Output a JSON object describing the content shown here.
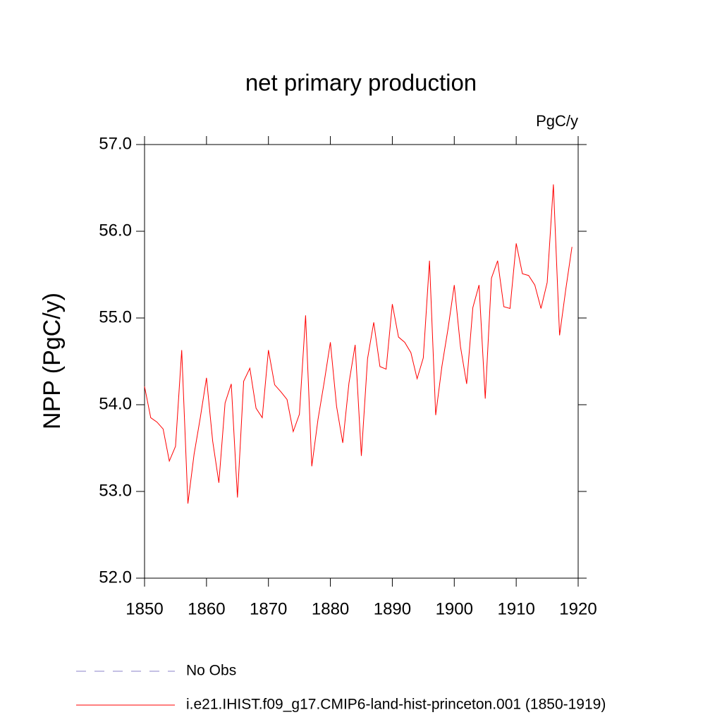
{
  "chart_data": {
    "type": "line",
    "title": "net primary production",
    "units": "PgC/y",
    "y_label": "NPP  (PgC/y)",
    "x": [
      1850,
      1851,
      1852,
      1853,
      1854,
      1855,
      1856,
      1857,
      1858,
      1859,
      1860,
      1861,
      1862,
      1863,
      1864,
      1865,
      1866,
      1867,
      1868,
      1869,
      1870,
      1871,
      1872,
      1873,
      1874,
      1875,
      1876,
      1877,
      1878,
      1879,
      1880,
      1881,
      1882,
      1883,
      1884,
      1885,
      1886,
      1887,
      1888,
      1889,
      1890,
      1891,
      1892,
      1893,
      1894,
      1895,
      1896,
      1897,
      1898,
      1899,
      1900,
      1901,
      1902,
      1903,
      1904,
      1905,
      1906,
      1907,
      1908,
      1909,
      1910,
      1911,
      1912,
      1913,
      1914,
      1915,
      1916,
      1917,
      1918,
      1919
    ],
    "series": [
      {
        "name": "i.e21.IHIST.f09_g17.CMIP6-land-hist-princeton.001 (1850-1919)",
        "color": "#ff0000",
        "values": [
          54.21,
          53.85,
          53.8,
          53.72,
          53.35,
          53.52,
          54.63,
          52.86,
          53.43,
          53.85,
          54.31,
          53.58,
          53.1,
          54.02,
          54.24,
          52.93,
          54.27,
          54.42,
          53.96,
          53.85,
          54.63,
          54.23,
          54.15,
          54.06,
          53.69,
          53.89,
          55.03,
          53.29,
          53.83,
          54.26,
          54.72,
          53.98,
          53.56,
          54.25,
          54.69,
          53.41,
          54.53,
          54.95,
          54.44,
          54.41,
          55.16,
          54.78,
          54.72,
          54.6,
          54.3,
          54.54,
          55.66,
          53.88,
          54.44,
          54.88,
          55.38,
          54.67,
          54.24,
          55.12,
          55.38,
          54.07,
          55.46,
          55.66,
          55.13,
          55.11,
          55.86,
          55.51,
          55.49,
          55.38,
          55.11,
          55.41,
          56.54,
          54.8,
          55.33,
          55.82
        ]
      }
    ],
    "reference_lines": [
      {
        "name": "No Obs",
        "color": "#8a80c8",
        "dash": true
      }
    ],
    "xlim": [
      1850,
      1920
    ],
    "xticks": [
      1850,
      1860,
      1870,
      1880,
      1890,
      1900,
      1910,
      1920
    ],
    "ylim": [
      52,
      57
    ],
    "yticks": [
      {
        "value": 52,
        "label": "52.0"
      },
      {
        "value": 53,
        "label": "53.0"
      },
      {
        "value": 54,
        "label": "54.0"
      },
      {
        "value": 55,
        "label": "55.0"
      },
      {
        "value": 56,
        "label": "56.0"
      },
      {
        "value": 57,
        "label": "57.0"
      }
    ]
  }
}
